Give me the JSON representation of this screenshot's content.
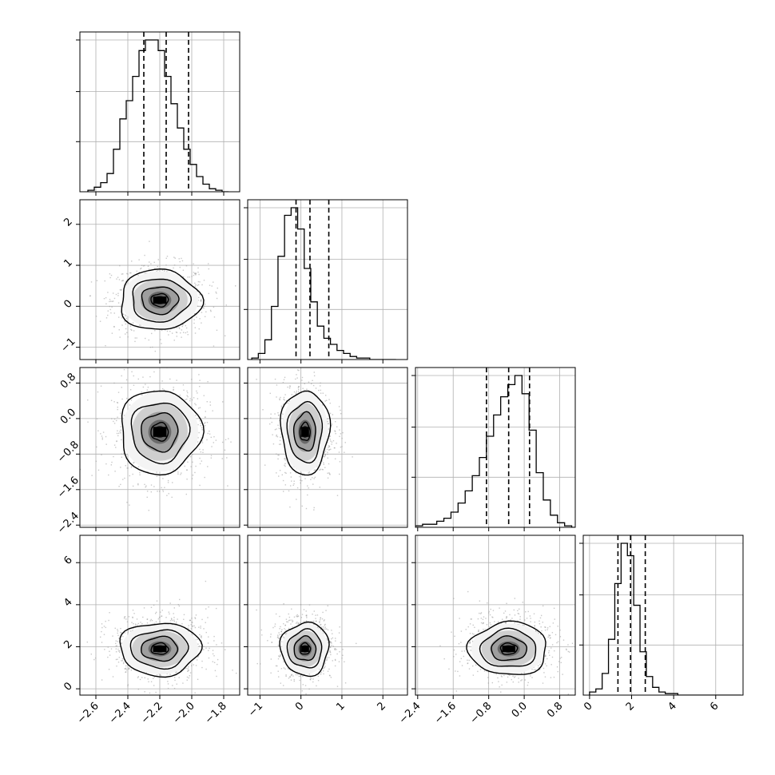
{
  "chart_data": {
    "type": "corner",
    "grid": true,
    "colors": {
      "line": "#000000",
      "grid": "#b0b0b0",
      "scatter": "#9a9a9a"
    },
    "parameters": [
      {
        "index": 0,
        "xlim": [
          -2.7,
          -1.7
        ],
        "ticks": [
          -2.6,
          -2.4,
          -2.2,
          -2.0,
          -1.8
        ],
        "tick_labels": [
          "−2.6",
          "−2.4",
          "−2.2",
          "−2.0",
          "−1.8"
        ],
        "quantiles": [
          -2.3,
          -2.16,
          -2.02
        ],
        "hist": {
          "bin_start": -2.65,
          "bin_width": 0.04,
          "counts": [
            1,
            3,
            6,
            12,
            28,
            48,
            60,
            76,
            93,
            100,
            100,
            93,
            76,
            58,
            42,
            28,
            18,
            10,
            5,
            2,
            1,
            0
          ]
        }
      },
      {
        "index": 1,
        "xlim": [
          -1.3,
          2.6
        ],
        "ylim": [
          -1.3,
          2.6
        ],
        "ticks": [
          -1,
          0,
          1,
          2
        ],
        "tick_labels": [
          "−1",
          "0",
          "1",
          "2"
        ],
        "quantiles": [
          -0.12,
          0.22,
          0.68
        ],
        "hist": {
          "bin_start": -1.2,
          "bin_width": 0.16,
          "counts": [
            1,
            4,
            13,
            35,
            68,
            95,
            100,
            86,
            60,
            38,
            22,
            14,
            10,
            6,
            4,
            2,
            1,
            1,
            0,
            0,
            0,
            0
          ]
        }
      },
      {
        "index": 2,
        "xlim": [
          -2.45,
          1.15
        ],
        "ylim": [
          -2.45,
          1.15
        ],
        "ticks": [
          -2.4,
          -1.6,
          -0.8,
          0.0,
          0.8
        ],
        "tick_labels": [
          "−2.4",
          "−1.6",
          "−0.8",
          "0.0",
          "0.8"
        ],
        "quantiles": [
          -0.85,
          -0.35,
          0.12
        ],
        "hist": {
          "bin_start": -2.45,
          "bin_width": 0.16,
          "counts": [
            1,
            2,
            2,
            4,
            6,
            10,
            16,
            24,
            34,
            46,
            60,
            74,
            86,
            94,
            100,
            88,
            64,
            36,
            18,
            8,
            3,
            1,
            0
          ]
        }
      },
      {
        "index": 3,
        "xlim": [
          -0.3,
          7.3
        ],
        "ylim": [
          -0.3,
          7.3
        ],
        "ticks": [
          0,
          2,
          4,
          6
        ],
        "tick_labels": [
          "0",
          "2",
          "4",
          "6"
        ],
        "quantiles": [
          1.35,
          1.95,
          2.65
        ],
        "hist": {
          "bin_start": 0.0,
          "bin_width": 0.3,
          "counts": [
            2,
            4,
            14,
            36,
            72,
            98,
            90,
            58,
            28,
            12,
            5,
            2,
            1,
            1,
            0,
            0,
            0,
            0,
            0,
            0,
            0,
            0,
            0,
            0
          ]
        }
      }
    ],
    "joint_centers": {
      "1-0": {
        "x": -2.2,
        "y": 0.15,
        "sx": 0.12,
        "sy": 0.35
      },
      "2-0": {
        "x": -2.2,
        "y": -0.3,
        "sx": 0.12,
        "sy": 0.45
      },
      "2-1": {
        "x": 0.1,
        "y": -0.3,
        "sx": 0.28,
        "sy": 0.45
      },
      "3-0": {
        "x": -2.2,
        "y": 1.9,
        "sx": 0.12,
        "sy": 0.6
      },
      "3-1": {
        "x": 0.1,
        "y": 1.9,
        "sx": 0.28,
        "sy": 0.6
      },
      "3-2": {
        "x": -0.35,
        "y": 1.9,
        "sx": 0.42,
        "sy": 0.6
      }
    }
  }
}
